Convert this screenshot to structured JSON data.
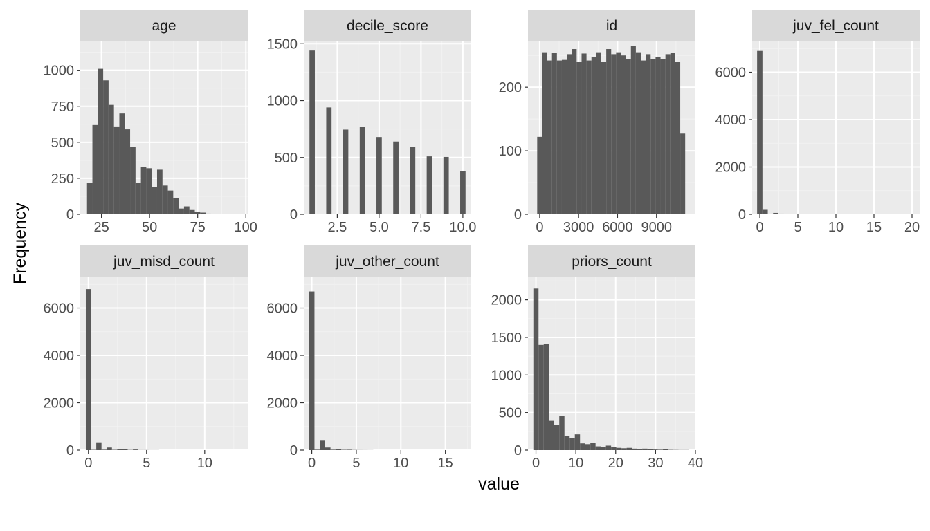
{
  "chart_data": {
    "type": "bar",
    "subtype": "faceted-histogram",
    "xlabel": "value",
    "ylabel": "Frequency",
    "scales": "free",
    "grid": true,
    "colors": {
      "bar": "#595959",
      "panel_bg": "#ebebeb",
      "strip_bg": "#d9d9d9",
      "grid_major": "#ffffff",
      "grid_minor": "#f2f2f2"
    },
    "facets": [
      {
        "name": "age",
        "xlim": [
          14,
          101
        ],
        "ylim": [
          0,
          1200
        ],
        "x_ticks": [
          25,
          50,
          75,
          100
        ],
        "x_tick_labels": [
          "25",
          "50",
          "75",
          "100"
        ],
        "y_ticks": [
          0,
          250,
          500,
          750,
          1000
        ],
        "y_tick_labels": [
          "0",
          "250",
          "500",
          "750",
          "1000"
        ],
        "bins": [
          [
            17.5,
            20.3,
            220
          ],
          [
            20.3,
            23.1,
            620
          ],
          [
            23.1,
            25.9,
            1010
          ],
          [
            25.9,
            28.7,
            930
          ],
          [
            28.7,
            31.5,
            760
          ],
          [
            31.5,
            34.3,
            610
          ],
          [
            34.3,
            37.1,
            700
          ],
          [
            37.1,
            39.9,
            590
          ],
          [
            39.9,
            42.7,
            470
          ],
          [
            42.7,
            45.5,
            220
          ],
          [
            45.5,
            48.3,
            330
          ],
          [
            48.3,
            51.1,
            320
          ],
          [
            51.1,
            53.9,
            190
          ],
          [
            53.9,
            56.7,
            310
          ],
          [
            56.7,
            59.5,
            200
          ],
          [
            59.5,
            62.3,
            165
          ],
          [
            62.3,
            65.1,
            115
          ],
          [
            65.1,
            67.9,
            40
          ],
          [
            67.9,
            70.7,
            55
          ],
          [
            70.7,
            73.5,
            30
          ],
          [
            73.5,
            76.3,
            15
          ],
          [
            76.3,
            79.1,
            12
          ],
          [
            79.1,
            81.9,
            5
          ],
          [
            81.9,
            84.7,
            4
          ],
          [
            84.7,
            87.5,
            2
          ],
          [
            87.5,
            90.3,
            1
          ],
          [
            95.9,
            98.7,
            1
          ]
        ]
      },
      {
        "name": "decile_score",
        "xlim": [
          0.5,
          10.5
        ],
        "ylim": [
          0,
          1520
        ],
        "x_ticks": [
          2.5,
          5.0,
          7.5,
          10.0
        ],
        "x_tick_labels": [
          "2.5",
          "5.0",
          "7.5",
          "10.0"
        ],
        "y_ticks": [
          0,
          500,
          1000,
          1500
        ],
        "y_tick_labels": [
          "0",
          "500",
          "1000",
          "1500"
        ],
        "bins": [
          [
            0.84,
            1.16,
            1440
          ],
          [
            1.84,
            2.16,
            940
          ],
          [
            2.84,
            3.16,
            745
          ],
          [
            3.84,
            4.16,
            770
          ],
          [
            4.84,
            5.16,
            680
          ],
          [
            5.84,
            6.16,
            640
          ],
          [
            6.84,
            7.16,
            590
          ],
          [
            7.84,
            8.16,
            510
          ],
          [
            8.84,
            9.16,
            505
          ],
          [
            9.84,
            10.16,
            380
          ]
        ]
      },
      {
        "name": "id",
        "xlim": [
          -900,
          12000
        ],
        "ylim": [
          0,
          272
        ],
        "x_ticks": [
          0,
          3000,
          6000,
          9000
        ],
        "x_tick_labels": [
          "0",
          "3000",
          "6000",
          "9000"
        ],
        "y_ticks": [
          0,
          100,
          200
        ],
        "y_tick_labels": [
          "0",
          "100",
          "200"
        ],
        "bins": [
          [
            -190,
            190,
            122
          ],
          [
            190,
            570,
            255
          ],
          [
            570,
            950,
            242
          ],
          [
            950,
            1330,
            254
          ],
          [
            1330,
            1710,
            242
          ],
          [
            1710,
            2090,
            243
          ],
          [
            2090,
            2470,
            252
          ],
          [
            2470,
            2850,
            260
          ],
          [
            2850,
            3230,
            240
          ],
          [
            3230,
            3610,
            253
          ],
          [
            3610,
            3990,
            242
          ],
          [
            3990,
            4370,
            248
          ],
          [
            4370,
            4750,
            255
          ],
          [
            4750,
            5130,
            240
          ],
          [
            5130,
            5510,
            260
          ],
          [
            5510,
            5890,
            252
          ],
          [
            5890,
            6270,
            255
          ],
          [
            6270,
            6650,
            250
          ],
          [
            6650,
            7030,
            244
          ],
          [
            7030,
            7410,
            265
          ],
          [
            7410,
            7790,
            255
          ],
          [
            7790,
            8170,
            242
          ],
          [
            8170,
            8550,
            252
          ],
          [
            8550,
            8930,
            244
          ],
          [
            8930,
            9310,
            248
          ],
          [
            9310,
            9690,
            244
          ],
          [
            9690,
            10070,
            252
          ],
          [
            10070,
            10450,
            254
          ],
          [
            10450,
            10830,
            240
          ],
          [
            10830,
            11210,
            127
          ]
        ]
      },
      {
        "name": "juv_fel_count",
        "xlim": [
          -1.0,
          21.0
        ],
        "ylim": [
          0,
          7300
        ],
        "x_ticks": [
          0,
          5,
          10,
          15,
          20
        ],
        "x_tick_labels": [
          "0",
          "5",
          "10",
          "15",
          "20"
        ],
        "y_ticks": [
          0,
          2000,
          4000,
          6000
        ],
        "y_tick_labels": [
          "0",
          "2000",
          "4000",
          "6000"
        ],
        "bins": [
          [
            -0.35,
            0.35,
            6900
          ],
          [
            0.35,
            1.05,
            190
          ],
          [
            1.05,
            1.75,
            10
          ],
          [
            1.75,
            2.45,
            60
          ],
          [
            2.45,
            3.15,
            30
          ],
          [
            3.15,
            3.85,
            20
          ],
          [
            3.85,
            4.55,
            12
          ],
          [
            4.55,
            5.25,
            8
          ],
          [
            5.25,
            5.95,
            5
          ],
          [
            5.95,
            6.65,
            4
          ],
          [
            6.65,
            7.35,
            3
          ],
          [
            7.35,
            8.05,
            3
          ],
          [
            8.05,
            8.75,
            2
          ],
          [
            8.75,
            9.45,
            2
          ]
        ]
      },
      {
        "name": "juv_misd_count",
        "xlim": [
          -0.7,
          13.7
        ],
        "ylim": [
          0,
          7300
        ],
        "x_ticks": [
          0,
          5,
          10
        ],
        "x_tick_labels": [
          "0",
          "5",
          "10"
        ],
        "y_ticks": [
          0,
          2000,
          4000,
          6000
        ],
        "y_tick_labels": [
          "0",
          "2000",
          "4000",
          "6000"
        ],
        "bins": [
          [
            -0.225,
            0.225,
            6800
          ],
          [
            0.225,
            0.675,
            15
          ],
          [
            0.675,
            1.125,
            330
          ],
          [
            1.125,
            1.575,
            20
          ],
          [
            1.575,
            2.025,
            110
          ],
          [
            2.025,
            2.475,
            15
          ],
          [
            2.475,
            2.925,
            45
          ],
          [
            2.925,
            3.375,
            30
          ],
          [
            3.375,
            3.825,
            10
          ],
          [
            3.825,
            4.275,
            25
          ],
          [
            4.275,
            4.725,
            5
          ],
          [
            4.725,
            5.175,
            5
          ],
          [
            5.175,
            5.625,
            3
          ],
          [
            5.625,
            6.075,
            3
          ]
        ]
      },
      {
        "name": "juv_other_count",
        "xlim": [
          -0.9,
          17.9
        ],
        "ylim": [
          0,
          7300
        ],
        "x_ticks": [
          0,
          5,
          10,
          15
        ],
        "x_tick_labels": [
          "0",
          "5",
          "10",
          "15"
        ],
        "y_ticks": [
          0,
          2000,
          4000,
          6000
        ],
        "y_tick_labels": [
          "0",
          "2000",
          "4000",
          "6000"
        ],
        "bins": [
          [
            -0.3,
            0.3,
            6700
          ],
          [
            0.3,
            0.9,
            20
          ],
          [
            0.9,
            1.5,
            400
          ],
          [
            1.5,
            2.1,
            110
          ],
          [
            2.1,
            2.7,
            20
          ],
          [
            2.7,
            3.3,
            35
          ],
          [
            3.3,
            3.9,
            15
          ],
          [
            3.9,
            4.5,
            18
          ],
          [
            4.5,
            5.1,
            8
          ],
          [
            5.1,
            5.7,
            5
          ],
          [
            5.7,
            6.3,
            4
          ],
          [
            6.3,
            6.9,
            3
          ]
        ]
      },
      {
        "name": "priors_count",
        "xlim": [
          -2.0,
          40.0
        ],
        "ylim": [
          0,
          2300
        ],
        "x_ticks": [
          0,
          10,
          20,
          30,
          40
        ],
        "x_tick_labels": [
          "0",
          "10",
          "20",
          "30",
          "40"
        ],
        "y_ticks": [
          0,
          500,
          1000,
          1500,
          2000
        ],
        "y_tick_labels": [
          "0",
          "500",
          "1000",
          "1500",
          "2000"
        ],
        "bins": [
          [
            -0.65,
            0.65,
            2150
          ],
          [
            0.65,
            1.95,
            1400
          ],
          [
            1.95,
            3.25,
            1410
          ],
          [
            3.25,
            4.55,
            390
          ],
          [
            4.55,
            5.85,
            340
          ],
          [
            5.85,
            7.15,
            460
          ],
          [
            7.15,
            8.45,
            190
          ],
          [
            8.45,
            9.75,
            160
          ],
          [
            9.75,
            11.05,
            210
          ],
          [
            11.05,
            12.35,
            90
          ],
          [
            12.35,
            13.65,
            80
          ],
          [
            13.65,
            14.95,
            100
          ],
          [
            14.95,
            16.25,
            50
          ],
          [
            16.25,
            17.55,
            45
          ],
          [
            17.55,
            18.85,
            60
          ],
          [
            18.85,
            20.15,
            45
          ],
          [
            20.15,
            21.45,
            30
          ],
          [
            21.45,
            22.75,
            25
          ],
          [
            22.75,
            24.05,
            30
          ],
          [
            24.05,
            25.35,
            20
          ],
          [
            25.35,
            26.65,
            15
          ],
          [
            26.65,
            27.95,
            20
          ],
          [
            27.95,
            29.25,
            10
          ],
          [
            29.25,
            30.55,
            8
          ],
          [
            30.55,
            31.85,
            6
          ],
          [
            31.85,
            33.15,
            10
          ],
          [
            33.15,
            34.45,
            4
          ],
          [
            34.45,
            35.75,
            3
          ],
          [
            35.75,
            37.05,
            2
          ],
          [
            37.05,
            38.35,
            2
          ]
        ]
      }
    ]
  }
}
